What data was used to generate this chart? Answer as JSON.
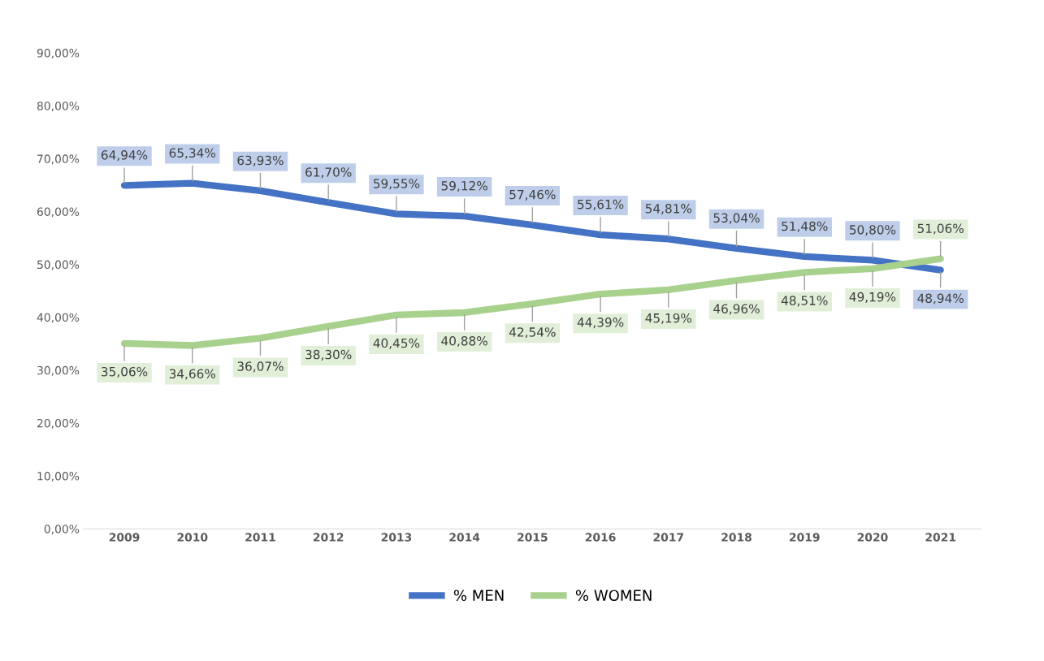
{
  "chart_data": {
    "type": "line",
    "categories": [
      "2009",
      "2010",
      "2011",
      "2012",
      "2013",
      "2014",
      "2015",
      "2016",
      "2017",
      "2018",
      "2019",
      "2020",
      "2021"
    ],
    "series": [
      {
        "name": "% MEN",
        "color": "#4472c4",
        "values": [
          64.94,
          65.34,
          63.93,
          61.7,
          59.55,
          59.12,
          57.46,
          55.61,
          54.81,
          53.04,
          51.48,
          50.8,
          48.94
        ],
        "value_labels": [
          "64,94%",
          "65,34%",
          "63,93%",
          "61,70%",
          "59,55%",
          "59,12%",
          "57,46%",
          "55,61%",
          "54,81%",
          "53,04%",
          "51,48%",
          "50,80%",
          "48,94%"
        ]
      },
      {
        "name": "% WOMEN",
        "color": "#a9d18e",
        "values": [
          35.06,
          34.66,
          36.07,
          38.3,
          40.45,
          40.88,
          42.54,
          44.39,
          45.19,
          46.96,
          48.51,
          49.19,
          51.06
        ],
        "value_labels": [
          "35,06%",
          "34,66%",
          "36,07%",
          "38,30%",
          "40,45%",
          "40,88%",
          "42,54%",
          "44,39%",
          "45,19%",
          "46,96%",
          "48,51%",
          "49,19%",
          "51,06%"
        ]
      }
    ],
    "ylim": [
      0,
      90
    ],
    "yticks": [
      {
        "value": 0,
        "label": "0,00%"
      },
      {
        "value": 10,
        "label": "10,00%"
      },
      {
        "value": 20,
        "label": "20,00%"
      },
      {
        "value": 30,
        "label": "30,00%"
      },
      {
        "value": 40,
        "label": "40,00%"
      },
      {
        "value": 50,
        "label": "50,00%"
      },
      {
        "value": 60,
        "label": "60,00%"
      },
      {
        "value": 70,
        "label": "70,00%"
      },
      {
        "value": 80,
        "label": "80,00%"
      },
      {
        "value": 90,
        "label": "90,00%"
      }
    ],
    "legend": "bottom",
    "grid": false,
    "marker": "none",
    "line_style": "solid"
  }
}
